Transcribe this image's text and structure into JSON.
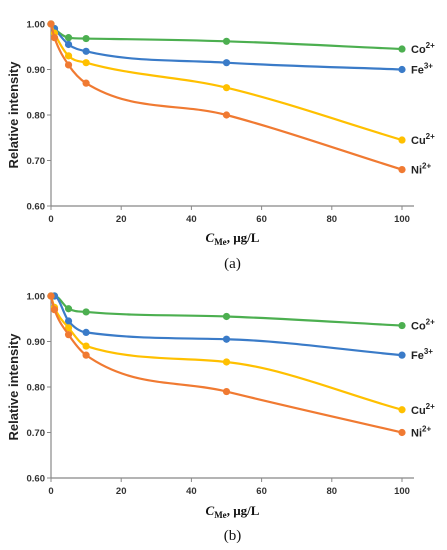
{
  "chart_data": [
    {
      "type": "line",
      "caption": "(a)",
      "xlabel": "C",
      "xlabel_sub": "Me",
      "xlabel_unit": ", µg/L",
      "ylabel": "Relative intensity",
      "xlim": [
        0,
        100
      ],
      "ylim": [
        0.6,
        1.0
      ],
      "xticks": [
        0,
        20,
        40,
        60,
        80,
        100
      ],
      "yticks": [
        0.6,
        0.7,
        0.8,
        0.9,
        1.0
      ],
      "ytick_labels": [
        "0.60",
        "0.70",
        "0.80",
        "0.90",
        "1.00"
      ],
      "x": [
        0,
        1,
        5,
        10,
        50,
        100
      ],
      "series": [
        {
          "name": "Co",
          "charge": "2+",
          "color": "#4CAF50",
          "values": [
            1.0,
            0.99,
            0.97,
            0.968,
            0.962,
            0.945
          ]
        },
        {
          "name": "Fe",
          "charge": "3+",
          "color": "#3A7BC8",
          "values": [
            1.0,
            0.99,
            0.955,
            0.94,
            0.915,
            0.9
          ]
        },
        {
          "name": "Cu",
          "charge": "2+",
          "color": "#FFC000",
          "values": [
            1.0,
            0.98,
            0.93,
            0.915,
            0.86,
            0.745
          ]
        },
        {
          "name": "Ni",
          "charge": "2+",
          "color": "#F07A32",
          "values": [
            1.0,
            0.97,
            0.91,
            0.87,
            0.8,
            0.68
          ]
        }
      ]
    },
    {
      "type": "line",
      "caption": "(b)",
      "xlabel": "C",
      "xlabel_sub": "Me",
      "xlabel_unit": ", µg/L",
      "ylabel": "Relative intensity",
      "xlim": [
        0,
        100
      ],
      "ylim": [
        0.6,
        1.0
      ],
      "xticks": [
        0,
        20,
        40,
        60,
        80,
        100
      ],
      "yticks": [
        0.6,
        0.7,
        0.8,
        0.9,
        1.0
      ],
      "ytick_labels": [
        "0.60",
        "0.70",
        "0.80",
        "0.90",
        "1.00"
      ],
      "x": [
        0,
        1,
        5,
        10,
        50,
        100
      ],
      "series": [
        {
          "name": "Co",
          "charge": "2+",
          "color": "#4CAF50",
          "values": [
            1.0,
            1.0,
            0.972,
            0.965,
            0.955,
            0.935
          ]
        },
        {
          "name": "Fe",
          "charge": "3+",
          "color": "#3A7BC8",
          "values": [
            1.0,
            1.0,
            0.945,
            0.92,
            0.905,
            0.87
          ]
        },
        {
          "name": "Cu",
          "charge": "2+",
          "color": "#FFC000",
          "values": [
            1.0,
            0.975,
            0.93,
            0.89,
            0.855,
            0.75
          ]
        },
        {
          "name": "Ni",
          "charge": "2+",
          "color": "#F07A32",
          "values": [
            1.0,
            0.97,
            0.915,
            0.87,
            0.79,
            0.7
          ]
        }
      ]
    }
  ]
}
